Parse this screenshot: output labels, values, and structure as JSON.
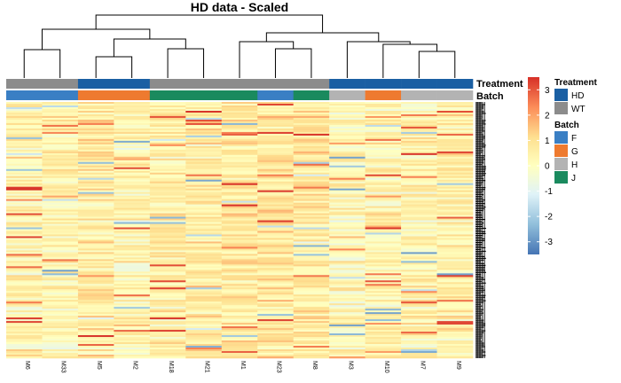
{
  "chart_data": {
    "type": "heatmap",
    "title": "HD data - Scaled",
    "columns": [
      "M6",
      "M33",
      "M5",
      "M2",
      "M18",
      "M21",
      "M1",
      "M23",
      "M8",
      "M3",
      "M10",
      "M7",
      "M9"
    ],
    "annotations": {
      "Treatment": [
        "WT",
        "WT",
        "HD",
        "HD",
        "WT",
        "WT",
        "WT",
        "WT",
        "WT",
        "HD",
        "HD",
        "HD",
        "HD"
      ],
      "Batch": [
        "F",
        "F",
        "G",
        "G",
        "J",
        "J",
        "J",
        "F",
        "J",
        "H",
        "G",
        "H",
        "H"
      ]
    },
    "annotation_labels": [
      "Treatment",
      "Batch"
    ],
    "color_scale": {
      "min": -3.5,
      "max": 3.5,
      "ticks": [
        3,
        2,
        1,
        0,
        -1,
        -2,
        -3
      ],
      "colors": [
        "#4575b4",
        "#91bfdb",
        "#e0f3f8",
        "#ffffbf",
        "#fee090",
        "#fc8d59",
        "#d73027"
      ]
    },
    "legend": {
      "position": "right",
      "groups": [
        {
          "title": "Treatment",
          "items": [
            {
              "label": "HD",
              "color": "#1a5fa3"
            },
            {
              "label": "WT",
              "color": "#8c8c8c"
            }
          ]
        },
        {
          "title": "Batch",
          "items": [
            {
              "label": "F",
              "color": "#3a7fc4"
            },
            {
              "label": "G",
              "color": "#ee7a2f"
            },
            {
              "label": "H",
              "color": "#b3b3b3"
            },
            {
              "label": "J",
              "color": "#1a8a5e"
            }
          ]
        }
      ]
    },
    "column_dendrogram": true,
    "row_dendrogram": false,
    "row_labels_visible": false
  }
}
